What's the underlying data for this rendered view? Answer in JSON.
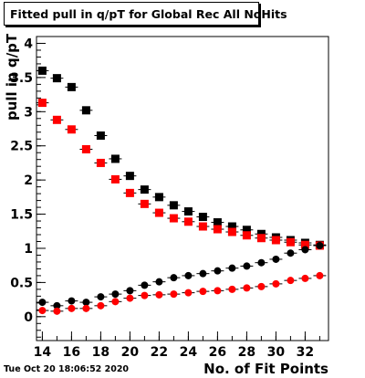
{
  "chart_data": {
    "type": "scatter",
    "title": "Fitted pull in q/pT for Global Rec All NoHits",
    "xlabel": "No. of Fit Points",
    "ylabel": "pull in q/pT",
    "xlim": [
      13.6,
      33.6
    ],
    "ylim": [
      -0.35,
      4.1
    ],
    "x_ticks": [
      14,
      16,
      18,
      20,
      22,
      24,
      26,
      28,
      30,
      32
    ],
    "x_tick_labels": [
      "14",
      "16",
      "18",
      "20",
      "22",
      "24",
      "26",
      "28",
      "30",
      "32"
    ],
    "y_ticks": [
      0,
      0.5,
      1,
      1.5,
      2,
      2.5,
      3,
      3.5,
      4
    ],
    "y_tick_labels": [
      "0",
      "0.5",
      "1",
      "1.5",
      "2",
      "2.5",
      "3",
      "3.5",
      "4"
    ],
    "x": [
      14,
      15,
      16,
      17,
      18,
      19,
      20,
      21,
      22,
      23,
      24,
      25,
      26,
      27,
      28,
      29,
      30,
      31,
      32,
      33
    ],
    "series": [
      {
        "marker": "square",
        "color": "#000000",
        "values": [
          3.6,
          3.49,
          3.36,
          3.02,
          2.65,
          2.31,
          2.06,
          1.86,
          1.75,
          1.63,
          1.54,
          1.46,
          1.38,
          1.32,
          1.27,
          1.21,
          1.16,
          1.12,
          1.08,
          1.05
        ]
      },
      {
        "marker": "square",
        "color": "#ff0000",
        "values": [
          3.13,
          2.88,
          2.74,
          2.45,
          2.25,
          2.01,
          1.81,
          1.65,
          1.52,
          1.44,
          1.39,
          1.32,
          1.28,
          1.24,
          1.19,
          1.15,
          1.12,
          1.09,
          1.05,
          1.04
        ]
      },
      {
        "marker": "circle",
        "color": "#000000",
        "values": [
          0.21,
          0.16,
          0.23,
          0.21,
          0.29,
          0.33,
          0.38,
          0.46,
          0.51,
          0.57,
          0.6,
          0.63,
          0.67,
          0.71,
          0.74,
          0.79,
          0.84,
          0.93,
          0.98,
          1.04
        ]
      },
      {
        "marker": "circle",
        "color": "#ff0000",
        "values": [
          0.09,
          0.08,
          0.12,
          0.12,
          0.16,
          0.22,
          0.27,
          0.31,
          0.32,
          0.33,
          0.35,
          0.37,
          0.38,
          0.4,
          0.42,
          0.44,
          0.48,
          0.53,
          0.56,
          0.6
        ]
      }
    ]
  },
  "footer": {
    "timestamp": "Tue Oct 20 18:06:52 2020"
  }
}
